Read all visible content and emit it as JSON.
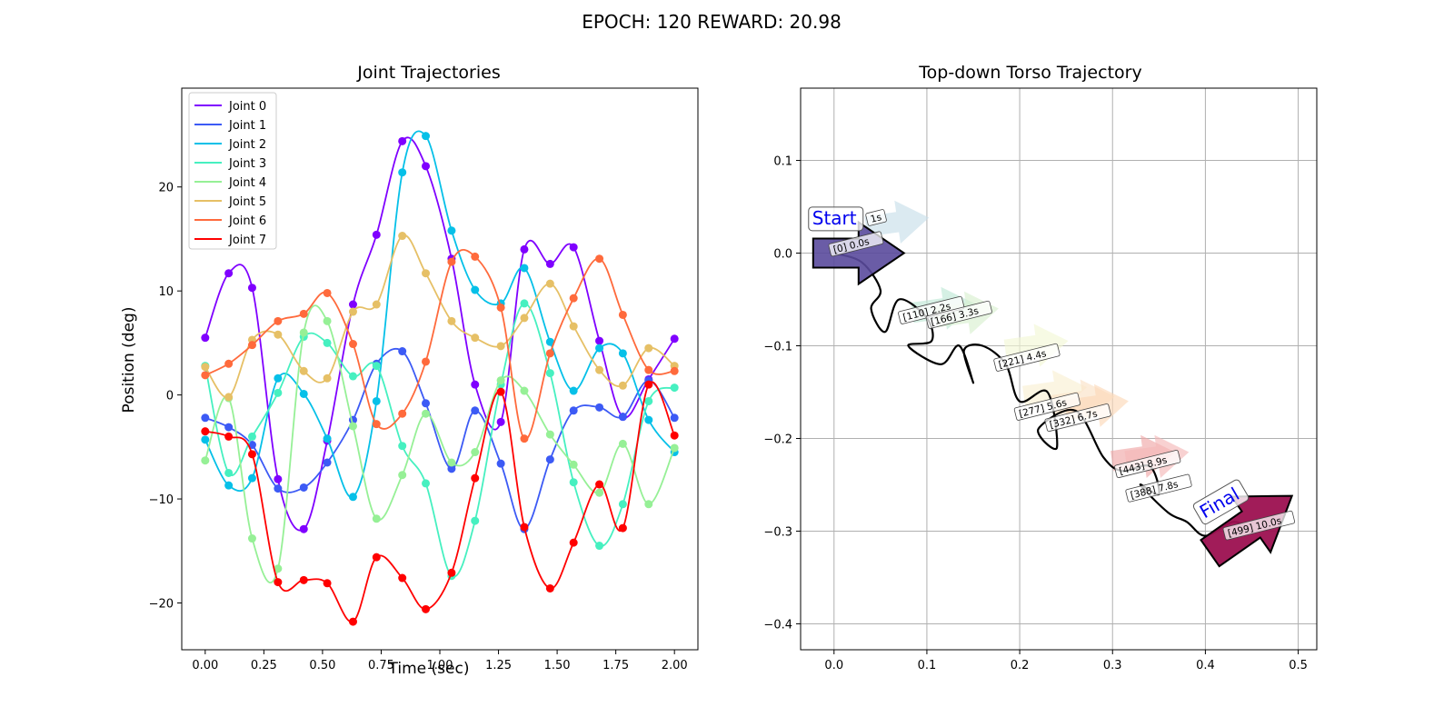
{
  "suptitle": "EPOCH: 120 REWARD:  20.98",
  "chart_data": [
    {
      "type": "line",
      "title": "Joint Trajectories",
      "xlabel": "Time (sec)",
      "ylabel": "Position (deg)",
      "xlim": [
        -0.1,
        2.1
      ],
      "ylim": [
        -24.5,
        29.5
      ],
      "xticks": [
        "0.00",
        "0.25",
        "0.50",
        "0.75",
        "1.00",
        "1.25",
        "1.50",
        "1.75",
        "2.00"
      ],
      "yticks": [
        "20",
        "10",
        "0",
        "−10",
        "−20"
      ],
      "legend_position": "upper-left",
      "grid": false,
      "x": [
        0.0,
        0.1,
        0.2,
        0.31,
        0.42,
        0.52,
        0.63,
        0.73,
        0.84,
        0.94,
        1.05,
        1.15,
        1.26,
        1.36,
        1.47,
        1.57,
        1.68,
        1.78,
        1.89,
        2.0
      ],
      "series": [
        {
          "name": "Joint 0",
          "color": "#7f00ff",
          "values": [
            5.5,
            11.7,
            10.3,
            -8.1,
            -12.9,
            -4.4,
            8.7,
            15.4,
            24.4,
            22.0,
            13.1,
            1.0,
            -2.6,
            14.0,
            12.6,
            14.2,
            5.2,
            -2.1,
            1.5,
            5.4
          ]
        },
        {
          "name": "Joint 1",
          "color": "#3c5af5",
          "values": [
            -2.2,
            -3.1,
            -4.8,
            -9.0,
            -8.9,
            -6.5,
            -2.4,
            3.0,
            4.2,
            -0.8,
            -7.1,
            -1.5,
            -6.6,
            -12.9,
            -6.2,
            -1.5,
            -1.2,
            -2.1,
            1.4,
            -2.2
          ]
        },
        {
          "name": "Joint 2",
          "color": "#06c0e8",
          "values": [
            -4.3,
            -8.7,
            -8.0,
            1.6,
            0.1,
            -4.2,
            -9.8,
            -0.6,
            21.4,
            24.9,
            15.8,
            10.1,
            8.8,
            12.2,
            5.1,
            0.4,
            4.5,
            4.0,
            -2.4,
            -5.5
          ]
        },
        {
          "name": "Joint 3",
          "color": "#46f0c0",
          "values": [
            2.8,
            -7.5,
            -4.0,
            0.2,
            5.6,
            5.0,
            1.8,
            2.8,
            -4.9,
            -8.5,
            -17.4,
            -12.1,
            1.0,
            8.8,
            2.1,
            -8.4,
            -14.5,
            -10.5,
            -0.6,
            0.7
          ]
        },
        {
          "name": "Joint 4",
          "color": "#96f096",
          "values": [
            -6.3,
            -0.3,
            -13.8,
            -16.7,
            6.0,
            7.1,
            -3.0,
            -11.9,
            -7.7,
            -1.8,
            -6.5,
            -5.5,
            1.4,
            0.4,
            -3.8,
            -6.7,
            -9.4,
            -4.7,
            -10.5,
            -5.1
          ]
        },
        {
          "name": "Joint 5",
          "color": "#e6c066",
          "values": [
            2.7,
            -0.2,
            5.3,
            5.8,
            2.3,
            1.6,
            8.0,
            8.7,
            15.3,
            11.7,
            7.1,
            5.5,
            4.7,
            7.4,
            10.7,
            6.6,
            2.4,
            0.9,
            4.5,
            2.8
          ]
        },
        {
          "name": "Joint 6",
          "color": "#ff6a3c",
          "values": [
            1.9,
            3.0,
            4.8,
            7.1,
            7.8,
            9.8,
            4.9,
            -2.8,
            -1.8,
            3.2,
            12.8,
            13.3,
            8.4,
            -4.2,
            4.0,
            9.3,
            13.1,
            7.7,
            2.4,
            2.3
          ]
        },
        {
          "name": "Joint 7",
          "color": "#ff0000",
          "values": [
            -3.5,
            -4.0,
            -5.7,
            -18.0,
            -17.8,
            -18.1,
            -21.8,
            -15.6,
            -17.6,
            -20.6,
            -17.1,
            -8.0,
            0.3,
            -12.7,
            -18.6,
            -14.2,
            -8.6,
            -12.8,
            1.0,
            -3.9
          ]
        }
      ]
    },
    {
      "type": "scatter",
      "title": "Top-down Torso Trajectory",
      "xlim": [
        -0.036,
        0.52
      ],
      "ylim": [
        -0.428,
        0.178
      ],
      "xticks": [
        "0.0",
        "0.1",
        "0.2",
        "0.3",
        "0.4",
        "0.5"
      ],
      "yticks": [
        "0.1",
        "0.0",
        "−0.1",
        "−0.2",
        "−0.3",
        "−0.4"
      ],
      "grid": true,
      "start_label": "Start",
      "final_label": "Final",
      "path": [
        [
          0.0,
          0.0
        ],
        [
          0.03,
          -0.01
        ],
        [
          0.05,
          -0.04
        ],
        [
          0.04,
          -0.06
        ],
        [
          0.055,
          -0.085
        ],
        [
          0.07,
          -0.05
        ],
        [
          0.1,
          -0.07
        ],
        [
          0.105,
          -0.095
        ],
        [
          0.08,
          -0.1
        ],
        [
          0.115,
          -0.12
        ],
        [
          0.135,
          -0.1
        ],
        [
          0.15,
          -0.14
        ],
        [
          0.14,
          -0.105
        ],
        [
          0.16,
          -0.1
        ],
        [
          0.185,
          -0.12
        ],
        [
          0.2,
          -0.16
        ],
        [
          0.23,
          -0.15
        ],
        [
          0.24,
          -0.21
        ],
        [
          0.22,
          -0.19
        ],
        [
          0.26,
          -0.17
        ],
        [
          0.29,
          -0.22
        ],
        [
          0.31,
          -0.235
        ],
        [
          0.34,
          -0.23
        ],
        [
          0.35,
          -0.26
        ],
        [
          0.33,
          -0.25
        ],
        [
          0.36,
          -0.28
        ],
        [
          0.38,
          -0.29
        ],
        [
          0.4,
          -0.305
        ],
        [
          0.43,
          -0.29
        ],
        [
          0.45,
          -0.3
        ]
      ],
      "headings": [
        {
          "x": 0.065,
          "y": 0.033,
          "color": "#c7deea"
        },
        {
          "x": 0.115,
          "y": -0.06,
          "color": "#bfe8d6"
        },
        {
          "x": 0.14,
          "y": -0.065,
          "color": "#d8efd0"
        },
        {
          "x": 0.215,
          "y": -0.1,
          "color": "#f3f7d6"
        },
        {
          "x": 0.235,
          "y": -0.15,
          "color": "#f9efd2"
        },
        {
          "x": 0.265,
          "y": -0.16,
          "color": "#fbe2c6"
        },
        {
          "x": 0.28,
          "y": -0.165,
          "color": "#fcd8b8"
        },
        {
          "x": 0.33,
          "y": -0.22,
          "color": "#f0a8a8"
        },
        {
          "x": 0.345,
          "y": -0.22,
          "color": "#f4b8b8"
        }
      ],
      "start_arrow": {
        "x": 0.0,
        "y": 0.0,
        "color": "#5a4a9c"
      },
      "final_arrow": {
        "x": 0.435,
        "y": -0.29,
        "color": "#9c1050"
      },
      "labels": [
        {
          "text": "[0] 0.0s",
          "x": 0.0,
          "y": 0.001
        },
        {
          "text": "1s",
          "x": 0.04,
          "y": 0.034
        },
        {
          "text": "[110] 2.2s",
          "x": 0.075,
          "y": -0.072
        },
        {
          "text": "[166] 3.3s",
          "x": 0.105,
          "y": -0.077
        },
        {
          "text": "[221] 4.4s",
          "x": 0.178,
          "y": -0.123
        },
        {
          "text": "[277] 5.6s",
          "x": 0.2,
          "y": -0.176
        },
        {
          "text": "[332] 6.7s",
          "x": 0.233,
          "y": -0.188
        },
        {
          "text": "[443] 8.9s",
          "x": 0.308,
          "y": -0.238
        },
        {
          "text": "[388] 7.8s",
          "x": 0.32,
          "y": -0.264
        },
        {
          "text": "[499] 10.0s",
          "x": 0.425,
          "y": -0.305
        }
      ]
    }
  ]
}
